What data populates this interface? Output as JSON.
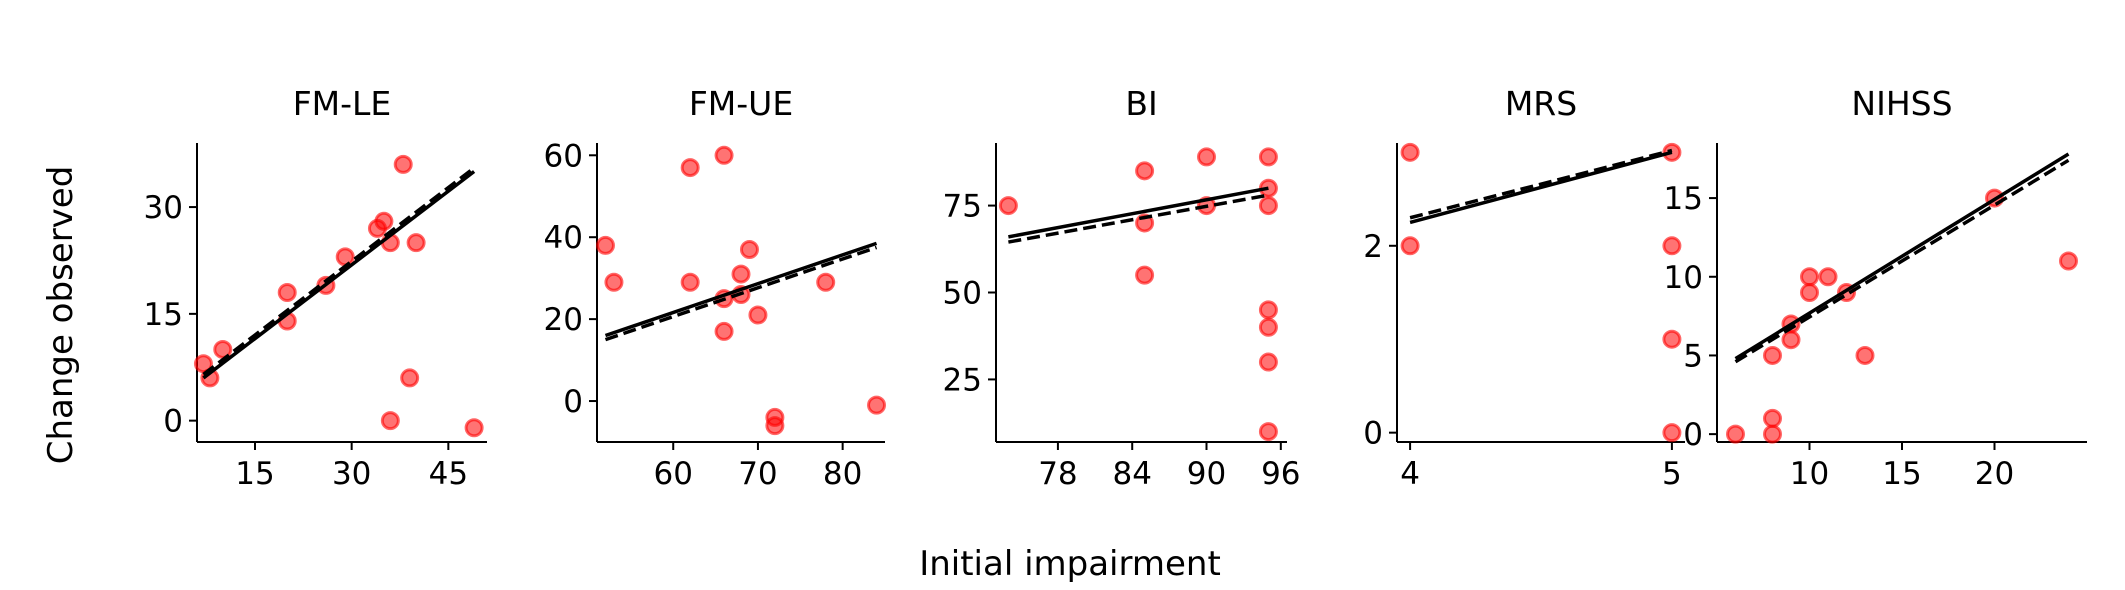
{
  "figure": {
    "xlabel": "Initial impairment",
    "ylabel": "Change observed"
  },
  "colors": {
    "points": "#ff0000",
    "fit_solid": "#000000",
    "fit_dashed": "#000000"
  },
  "chart_data": [
    {
      "type": "scatter",
      "title": "FM-LE",
      "xlim": [
        6,
        51
      ],
      "ylim": [
        -3,
        39
      ],
      "xticks": [
        15,
        30,
        45
      ],
      "yticks": [
        0,
        15,
        30
      ],
      "points": [
        [
          7,
          8
        ],
        [
          8,
          6
        ],
        [
          10,
          10
        ],
        [
          20,
          18
        ],
        [
          20,
          14
        ],
        [
          26,
          19
        ],
        [
          29,
          23
        ],
        [
          34,
          27
        ],
        [
          35,
          28
        ],
        [
          36,
          25
        ],
        [
          36,
          0
        ],
        [
          38,
          36
        ],
        [
          39,
          6
        ],
        [
          40,
          25
        ],
        [
          49,
          -1
        ]
      ],
      "fit_solid": [
        [
          7,
          6
        ],
        [
          49,
          35
        ]
      ],
      "fit_dashed": [
        [
          7,
          6.5
        ],
        [
          49,
          35.5
        ]
      ]
    },
    {
      "type": "scatter",
      "title": "FM-UE",
      "xlim": [
        51,
        85
      ],
      "ylim": [
        -10,
        63
      ],
      "xticks": [
        60,
        70,
        80
      ],
      "yticks": [
        0,
        20,
        40,
        60
      ],
      "points": [
        [
          52,
          38
        ],
        [
          53,
          29
        ],
        [
          62,
          57
        ],
        [
          62,
          29
        ],
        [
          66,
          60
        ],
        [
          66,
          25
        ],
        [
          66,
          17
        ],
        [
          68,
          31
        ],
        [
          68,
          26
        ],
        [
          69,
          37
        ],
        [
          70,
          21
        ],
        [
          72,
          -4
        ],
        [
          72,
          -6
        ],
        [
          78,
          29
        ],
        [
          84,
          -1
        ]
      ],
      "fit_solid": [
        [
          52,
          16
        ],
        [
          84,
          38.5
        ]
      ],
      "fit_dashed": [
        [
          52,
          15
        ],
        [
          84,
          37.5
        ]
      ]
    },
    {
      "type": "scatter",
      "title": "BI",
      "xlim": [
        73,
        96.5
      ],
      "ylim": [
        7,
        93
      ],
      "xticks": [
        78,
        84,
        90,
        96
      ],
      "yticks": [
        25,
        50,
        75
      ],
      "points": [
        [
          74,
          75
        ],
        [
          85,
          85
        ],
        [
          85,
          70
        ],
        [
          85,
          55
        ],
        [
          90,
          89
        ],
        [
          90,
          75
        ],
        [
          95,
          89
        ],
        [
          95,
          80
        ],
        [
          95,
          75
        ],
        [
          95,
          45
        ],
        [
          95,
          40
        ],
        [
          95,
          30
        ],
        [
          95,
          10
        ]
      ],
      "fit_solid": [
        [
          74,
          66
        ],
        [
          95,
          80
        ]
      ],
      "fit_dashed": [
        [
          74,
          64.5
        ],
        [
          95,
          78
        ]
      ]
    },
    {
      "type": "scatter",
      "title": "MRS",
      "xlim": [
        3.95,
        5.05
      ],
      "ylim": [
        -0.1,
        3.1
      ],
      "xticks": [
        4,
        5
      ],
      "yticks": [
        0,
        2
      ],
      "points": [
        [
          4,
          3
        ],
        [
          4,
          2
        ],
        [
          5,
          3
        ],
        [
          5,
          2
        ],
        [
          5,
          1
        ],
        [
          5,
          0
        ]
      ],
      "fit_solid": [
        [
          4,
          2.25
        ],
        [
          5,
          3
        ]
      ],
      "fit_dashed": [
        [
          4,
          2.3
        ],
        [
          5,
          3.02
        ]
      ]
    },
    {
      "type": "scatter",
      "title": "NIHSS",
      "xlim": [
        5,
        25
      ],
      "ylim": [
        -0.5,
        18.5
      ],
      "xticks": [
        10,
        15,
        20
      ],
      "yticks": [
        0,
        5,
        10,
        15
      ],
      "points": [
        [
          6,
          0
        ],
        [
          8,
          1
        ],
        [
          8,
          0
        ],
        [
          8,
          5
        ],
        [
          9,
          6
        ],
        [
          9,
          7
        ],
        [
          10,
          9
        ],
        [
          10,
          10
        ],
        [
          11,
          10
        ],
        [
          12,
          9
        ],
        [
          13,
          5
        ],
        [
          20,
          15
        ],
        [
          24,
          11
        ]
      ],
      "fit_solid": [
        [
          6,
          4.8
        ],
        [
          24,
          17.8
        ]
      ],
      "fit_dashed": [
        [
          6,
          4.6
        ],
        [
          24,
          17.4
        ]
      ]
    }
  ]
}
